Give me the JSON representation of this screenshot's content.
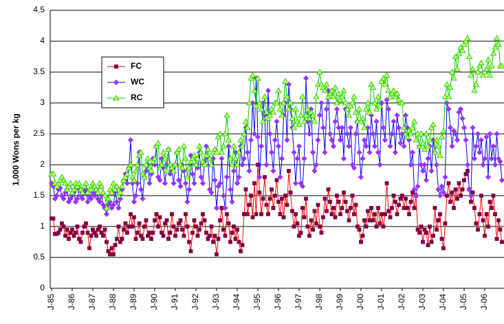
{
  "chart_data": {
    "type": "line",
    "y_label": "1,000 Wons per kg",
    "ylim": [
      0,
      4.5
    ],
    "yticks": [
      0,
      0.5,
      1,
      1.5,
      2,
      2.5,
      3,
      3.5,
      4,
      4.5
    ],
    "grid": true,
    "legend": "upper left",
    "categories": [
      "J-85",
      null,
      null,
      null,
      null,
      null,
      null,
      null,
      null,
      null,
      null,
      null,
      "J-86",
      null,
      null,
      null,
      null,
      null,
      null,
      null,
      null,
      null,
      null,
      null,
      "J-87",
      null,
      null,
      null,
      null,
      null,
      null,
      null,
      null,
      null,
      null,
      null,
      "J-88",
      null,
      null,
      null,
      null,
      null,
      null,
      null,
      null,
      null,
      null,
      null,
      "J-89",
      null,
      null,
      null,
      null,
      null,
      null,
      null,
      null,
      null,
      null,
      null,
      "J-90",
      null,
      null,
      null,
      null,
      null,
      null,
      null,
      null,
      null,
      null,
      null,
      "J-91",
      null,
      null,
      null,
      null,
      null,
      null,
      null,
      null,
      null,
      null,
      null,
      "J-92",
      null,
      null,
      null,
      null,
      null,
      null,
      null,
      null,
      null,
      null,
      null,
      "J-93",
      null,
      null,
      null,
      null,
      null,
      null,
      null,
      null,
      null,
      null,
      null,
      "J-94",
      null,
      null,
      null,
      null,
      null,
      null,
      null,
      null,
      null,
      null,
      null,
      "J-95",
      null,
      null,
      null,
      null,
      null,
      null,
      null,
      null,
      null,
      null,
      null,
      "J-96",
      null,
      null,
      null,
      null,
      null,
      null,
      null,
      null,
      null,
      null,
      null,
      "J-97",
      null,
      null,
      null,
      null,
      null,
      null,
      null,
      null,
      null,
      null,
      null,
      "J-98",
      null,
      null,
      null,
      null,
      null,
      null,
      null,
      null,
      null,
      null,
      null,
      "J-99",
      null,
      null,
      null,
      null,
      null,
      null,
      null,
      null,
      null,
      null,
      null,
      "J-00",
      null,
      null,
      null,
      null,
      null,
      null,
      null,
      null,
      null,
      null,
      null,
      "J-01",
      null,
      null,
      null,
      null,
      null,
      null,
      null,
      null,
      null,
      null,
      null,
      "J-02",
      null,
      null,
      null,
      null,
      null,
      null,
      null,
      null,
      null,
      null,
      null,
      "J-03",
      null,
      null,
      null,
      null,
      null,
      null,
      null,
      null,
      null,
      null,
      null,
      "J-04",
      null,
      null,
      null,
      null,
      null,
      null,
      null,
      null,
      null,
      null,
      null,
      "J-05",
      null,
      null,
      null,
      null,
      null,
      null,
      null,
      null,
      null,
      null,
      null,
      "J-06",
      null,
      null,
      null,
      null,
      null,
      null,
      null,
      null,
      null,
      null
    ],
    "series": [
      {
        "name": "FC",
        "color": "#ff0000",
        "marker": "square",
        "marker_color": "#800040",
        "values": [
          1.13,
          1.13,
          0.88,
          0.88,
          0.9,
          0.95,
          1.05,
          1.0,
          0.85,
          0.95,
          0.8,
          0.9,
          0.95,
          0.85,
          0.9,
          1.0,
          0.8,
          0.75,
          0.9,
          1.0,
          1.05,
          0.9,
          0.65,
          0.85,
          0.95,
          0.9,
          0.85,
          0.95,
          1.0,
          0.9,
          0.85,
          0.95,
          0.75,
          0.6,
          0.55,
          0.65,
          0.55,
          0.7,
          0.8,
          1.0,
          0.75,
          0.8,
          0.95,
          1.05,
          0.9,
          1.0,
          1.2,
          1.0,
          1.15,
          0.8,
          0.9,
          1.05,
          0.85,
          0.8,
          1.0,
          1.1,
          0.85,
          0.9,
          0.8,
          0.9,
          1.1,
          1.2,
          1.0,
          1.15,
          0.9,
          0.85,
          1.05,
          1.1,
          0.8,
          0.9,
          1.2,
          1.0,
          0.85,
          0.95,
          1.05,
          1.1,
          0.95,
          0.85,
          1.2,
          1.0,
          0.75,
          0.6,
          0.9,
          1.1,
          1.0,
          0.85,
          0.95,
          1.05,
          1.2,
          1.1,
          0.9,
          0.8,
          0.85,
          1.0,
          0.75,
          0.85,
          0.55,
          0.8,
          1.1,
          1.3,
          0.95,
          0.85,
          1.2,
          1.05,
          0.75,
          0.9,
          1.0,
          0.8,
          0.95,
          0.75,
          0.6,
          0.7,
          1.2,
          1.6,
          1.2,
          1.35,
          1.5,
          1.15,
          1.7,
          1.2,
          2.0,
          1.55,
          1.2,
          1.45,
          1.8,
          1.35,
          1.2,
          1.45,
          1.6,
          1.3,
          1.5,
          1.75,
          1.4,
          1.2,
          1.45,
          1.15,
          1.5,
          1.35,
          1.9,
          1.55,
          1.25,
          1.0,
          1.2,
          1.05,
          0.85,
          0.9,
          1.3,
          1.15,
          1.45,
          1.0,
          0.85,
          1.1,
          0.95,
          1.25,
          1.05,
          1.35,
          1.0,
          0.9,
          1.15,
          1.45,
          1.25,
          1.6,
          1.4,
          1.2,
          1.3,
          1.15,
          1.5,
          1.4,
          1.2,
          1.3,
          1.55,
          1.4,
          1.25,
          1.1,
          1.3,
          1.5,
          1.2,
          1.35,
          1.0,
          0.95,
          0.75,
          0.85,
          1.1,
          1.0,
          1.25,
          1.1,
          1.3,
          1.1,
          1.2,
          1.0,
          1.3,
          1.05,
          1.2,
          1.0,
          1.2,
          1.7,
          1.25,
          1.15,
          1.3,
          1.5,
          1.4,
          1.2,
          1.35,
          1.45,
          1.5,
          1.3,
          1.45,
          1.3,
          1.2,
          1.4,
          1.55,
          1.3,
          1.5,
          0.95,
          0.9,
          1.0,
          0.75,
          0.95,
          0.9,
          0.7,
          1.0,
          0.75,
          0.85,
          1.3,
          0.95,
          1.1,
          1.2,
          0.8,
          0.65,
          1.05,
          1.5,
          1.7,
          1.4,
          1.55,
          1.3,
          1.6,
          1.45,
          1.7,
          1.5,
          1.6,
          1.75,
          1.85,
          1.9,
          1.6,
          1.4,
          1.55,
          1.3,
          1.05,
          0.95,
          1.2,
          1.5,
          1.1,
          0.85,
          1.2,
          1.0,
          1.4,
          1.3,
          1.5,
          1.2,
          0.8,
          1.1,
          0.95,
          0.75
        ]
      },
      {
        "name": "WC",
        "color": "#0000ff",
        "marker": "diamond",
        "marker_color": "#9933ff",
        "values": [
          1.7,
          1.65,
          1.45,
          1.5,
          1.6,
          1.62,
          1.5,
          1.45,
          1.55,
          1.6,
          1.4,
          1.45,
          1.5,
          1.55,
          1.4,
          1.45,
          1.6,
          1.5,
          1.45,
          1.55,
          1.6,
          1.4,
          1.5,
          1.45,
          1.55,
          1.5,
          1.6,
          1.45,
          1.4,
          1.5,
          1.35,
          1.3,
          1.2,
          1.35,
          1.4,
          1.3,
          1.35,
          1.55,
          1.4,
          1.3,
          1.45,
          1.6,
          1.75,
          1.85,
          1.7,
          1.95,
          2.4,
          1.7,
          1.4,
          1.5,
          1.7,
          2.2,
          1.6,
          1.45,
          1.8,
          1.9,
          2.0,
          1.7,
          1.85,
          2.1,
          2.0,
          2.3,
          1.8,
          1.75,
          2.1,
          1.95,
          1.7,
          2.0,
          2.25,
          1.85,
          1.9,
          1.7,
          2.0,
          2.2,
          1.75,
          1.65,
          2.0,
          1.9,
          1.7,
          1.4,
          1.6,
          2.15,
          1.85,
          1.7,
          2.0,
          1.95,
          2.2,
          1.8,
          1.7,
          2.05,
          2.3,
          2.1,
          1.6,
          1.55,
          2.1,
          1.75,
          1.3,
          1.65,
          1.7,
          2.1,
          1.5,
          1.3,
          1.8,
          2.3,
          1.6,
          1.4,
          1.9,
          2.2,
          1.7,
          1.8,
          2.3,
          2.0,
          2.1,
          2.6,
          2.2,
          1.9,
          2.4,
          3.0,
          2.5,
          3.4,
          2.45,
          1.8,
          2.3,
          3.0,
          2.8,
          2.0,
          3.2,
          2.5,
          2.2,
          1.9,
          2.4,
          2.7,
          2.3,
          1.8,
          2.1,
          2.8,
          3.0,
          2.4,
          3.3,
          2.9,
          2.6,
          2.2,
          1.7,
          2.1,
          2.3,
          1.7,
          1.65,
          2.1,
          3.4,
          2.7,
          2.5,
          2.9,
          2.2,
          1.9,
          2.0,
          2.4,
          2.8,
          3.0,
          2.6,
          2.2,
          2.9,
          3.2,
          2.5,
          2.4,
          2.3,
          2.7,
          2.9,
          2.6,
          2.4,
          2.6,
          2.1,
          2.9,
          2.5,
          2.3,
          2.6,
          2.0,
          1.95,
          2.5,
          2.7,
          2.2,
          1.8,
          2.1,
          2.4,
          2.3,
          2.6,
          2.2,
          2.8,
          2.5,
          2.3,
          2.7,
          2.2,
          2.0,
          3.0,
          2.6,
          2.4,
          3.05,
          2.9,
          2.3,
          2.5,
          2.7,
          2.2,
          2.8,
          2.6,
          2.35,
          2.5,
          2.3,
          2.8,
          2.6,
          2.4,
          2.0,
          2.2,
          1.6,
          1.5,
          1.65,
          2.3,
          2.0,
          1.9,
          2.0,
          1.75,
          2.1,
          2.3,
          1.9,
          2.4,
          2.2,
          2.0,
          1.6,
          1.5,
          1.65,
          1.55,
          1.8,
          3.0,
          2.9,
          2.6,
          2.3,
          2.55,
          2.5,
          2.4,
          2.85,
          2.9,
          2.75,
          2.6,
          2.4,
          2.0,
          1.6,
          1.5,
          2.6,
          2.1,
          2.3,
          2.5,
          2.2,
          2.4,
          2.0,
          2.1,
          2.45,
          1.8,
          2.5,
          2.1,
          2.3,
          2.0,
          2.5,
          2.1,
          2.05,
          1.75
        ]
      },
      {
        "name": "RC",
        "color": "#00cc00",
        "marker": "triangle",
        "marker_color": "#ccff66",
        "values": [
          1.85,
          1.85,
          1.7,
          1.65,
          1.7,
          1.75,
          1.8,
          1.75,
          1.7,
          1.6,
          1.65,
          1.7,
          1.55,
          1.6,
          1.7,
          1.65,
          1.7,
          1.6,
          1.55,
          1.65,
          1.7,
          1.55,
          1.6,
          1.6,
          1.7,
          1.65,
          1.6,
          1.55,
          1.7,
          1.65,
          1.55,
          1.5,
          1.3,
          1.45,
          1.6,
          1.55,
          1.7,
          1.6,
          1.65,
          1.5,
          1.55,
          1.65,
          1.75,
          1.8,
          1.85,
          1.95,
          2.0,
          1.8,
          1.75,
          1.9,
          2.0,
          2.15,
          2.2,
          1.85,
          1.8,
          2.0,
          2.1,
          1.95,
          1.9,
          2.05,
          2.1,
          2.3,
          2.35,
          1.95,
          2.0,
          2.2,
          2.1,
          1.9,
          2.25,
          2.0,
          1.95,
          1.9,
          2.0,
          2.2,
          2.25,
          2.0,
          1.95,
          2.3,
          2.1,
          1.8,
          1.95,
          2.05,
          2.1,
          2.15,
          2.0,
          2.1,
          2.3,
          2.2,
          2.05,
          2.0,
          2.15,
          2.25,
          2.1,
          2.0,
          2.2,
          2.25,
          2.2,
          2.45,
          2.5,
          2.2,
          2.3,
          2.5,
          2.8,
          2.4,
          2.1,
          2.0,
          2.3,
          2.1,
          2.0,
          2.2,
          2.4,
          2.3,
          2.5,
          2.7,
          2.6,
          3.0,
          3.4,
          3.45,
          3.2,
          2.95,
          3.4,
          3.0,
          2.9,
          2.7,
          3.1,
          2.85,
          2.75,
          2.8,
          2.9,
          2.85,
          3.0,
          3.0,
          3.2,
          2.9,
          2.8,
          3.0,
          3.35,
          3.1,
          2.9,
          3.0,
          2.75,
          2.6,
          2.9,
          2.7,
          2.65,
          2.8,
          3.1,
          2.7,
          2.8,
          2.9,
          2.75,
          2.85,
          2.8,
          2.7,
          3.1,
          3.3,
          3.5,
          3.3,
          3.25,
          3.2,
          3.3,
          3.1,
          3.15,
          3.2,
          3.1,
          3.25,
          3.0,
          3.15,
          3.05,
          3.1,
          3.2,
          3.0,
          2.9,
          2.8,
          2.95,
          3.0,
          3.1,
          2.85,
          2.7,
          2.9,
          2.7,
          2.75,
          2.6,
          2.9,
          3.0,
          2.85,
          3.3,
          3.25,
          3.0,
          2.9,
          3.1,
          2.95,
          3.35,
          3.4,
          3.3,
          3.45,
          3.2,
          3.1,
          3.15,
          3.2,
          3.1,
          3.15,
          3.05,
          3.0,
          3.0,
          2.6,
          2.5,
          2.45,
          2.55,
          2.5,
          2.6,
          2.7,
          2.4,
          2.5,
          2.3,
          2.5,
          2.35,
          2.25,
          2.5,
          2.3,
          2.4,
          2.6,
          2.65,
          2.2,
          2.4,
          2.3,
          2.15,
          2.45,
          2.55,
          3.1,
          3.3,
          3.1,
          3.25,
          3.5,
          3.4,
          3.75,
          3.55,
          3.8,
          3.9,
          3.85,
          3.95,
          4.0,
          4.05,
          3.75,
          3.45,
          3.55,
          3.2,
          3.3,
          3.5,
          3.6,
          3.65,
          3.45,
          3.5,
          3.55,
          3.7,
          3.45,
          3.6,
          3.8,
          3.9,
          4.05,
          3.95,
          3.6,
          3.6
        ]
      }
    ]
  }
}
